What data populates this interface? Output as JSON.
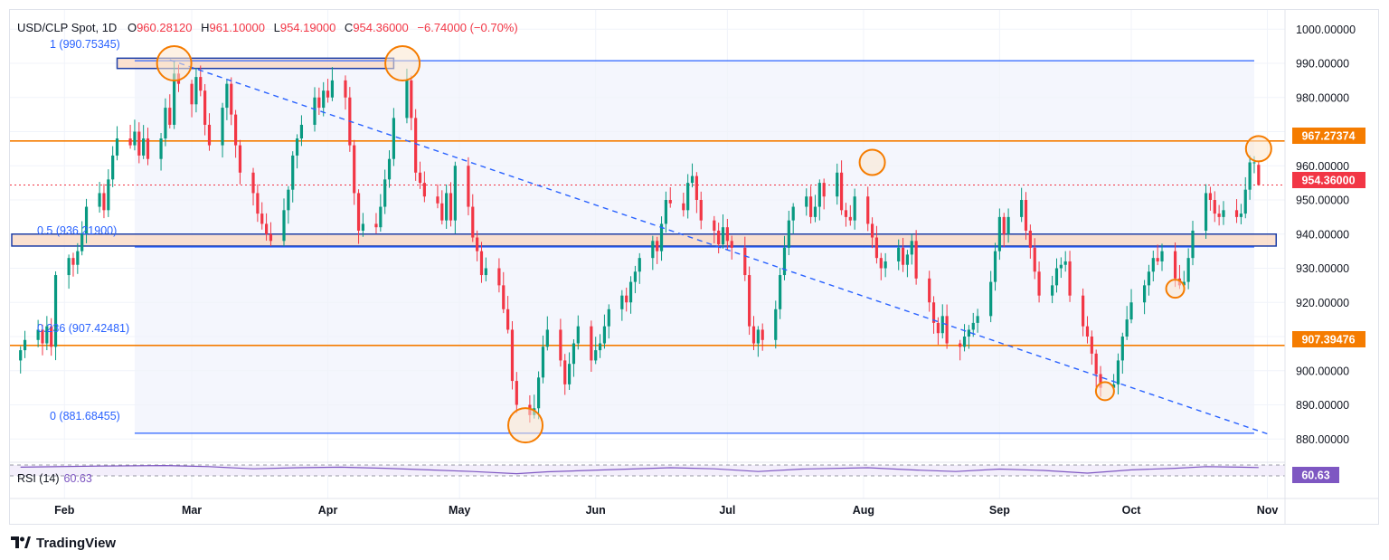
{
  "header": {
    "symbol": "USD/CLP Spot, 1D",
    "open_label": "O",
    "open": "960.28120",
    "high_label": "H",
    "high": "961.10000",
    "low_label": "L",
    "low": "954.19000",
    "close_label": "C",
    "close": "954.36000",
    "change": "−6.74000 (−0.70%)"
  },
  "fib_labels": [
    "1 (990.75345)",
    "0.5 (936.21900)",
    "0.236 (907.42481)",
    "0 (881.68455)"
  ],
  "price_badges": {
    "resistance": "967.27374",
    "last": "954.36000",
    "support": "907.39476",
    "rsi": "60.63"
  },
  "rsi_label": "RSI (14)",
  "rsi_value": "60.63",
  "brand": "TradingView",
  "colors": {
    "up": "#089981",
    "down": "#f23645",
    "fib": "#2962ff",
    "orange": "#f57c00",
    "zone": "#f9d7c0"
  },
  "chart_data": {
    "type": "candlestick",
    "ylim": [
      872,
      1004
    ],
    "y_ticks": [
      880,
      890,
      900,
      910,
      920,
      930,
      940,
      950,
      960,
      970,
      980,
      990,
      1000
    ],
    "y_tick_labels": [
      "880.00000",
      "890.00000",
      "900.00000",
      "910.00000",
      "920.00000",
      "930.00000",
      "940.00000",
      "950.00000",
      "960.00000",
      "970.00000",
      "980.00000",
      "990.00000",
      "1000.00000"
    ],
    "x_ticks": [
      {
        "label": "Feb",
        "day": 12
      },
      {
        "label": "Mar",
        "day": 41
      },
      {
        "label": "Apr",
        "day": 72
      },
      {
        "label": "May",
        "day": 102
      },
      {
        "label": "Jun",
        "day": 133
      },
      {
        "label": "Jul",
        "day": 163
      },
      {
        "label": "Aug",
        "day": 194
      },
      {
        "label": "Sep",
        "day": 225
      },
      {
        "label": "Oct",
        "day": 255
      },
      {
        "label": "Nov",
        "day": 286
      }
    ],
    "closes": [
      [
        2,
        906
      ],
      [
        3,
        909
      ],
      [
        6,
        912
      ],
      [
        7,
        908
      ],
      [
        8,
        913
      ],
      [
        9,
        907
      ],
      [
        10,
        928
      ],
      [
        13,
        933
      ],
      [
        14,
        931
      ],
      [
        15,
        935
      ],
      [
        16,
        940
      ],
      [
        17,
        948
      ],
      [
        20,
        952
      ],
      [
        21,
        947
      ],
      [
        22,
        956
      ],
      [
        23,
        963
      ],
      [
        24,
        968
      ],
      [
        27,
        966
      ],
      [
        28,
        970
      ],
      [
        29,
        963
      ],
      [
        30,
        968
      ],
      [
        31,
        962
      ],
      [
        34,
        968
      ],
      [
        35,
        977
      ],
      [
        36,
        972
      ],
      [
        37,
        987
      ],
      [
        38,
        984
      ],
      [
        41,
        978
      ],
      [
        42,
        986
      ],
      [
        43,
        982
      ],
      [
        44,
        972
      ],
      [
        45,
        966
      ],
      [
        48,
        977
      ],
      [
        49,
        984
      ],
      [
        50,
        975
      ],
      [
        51,
        966
      ],
      [
        52,
        958
      ],
      [
        55,
        952
      ],
      [
        56,
        946
      ],
      [
        57,
        943
      ],
      [
        58,
        940
      ],
      [
        59,
        938
      ],
      [
        62,
        947
      ],
      [
        63,
        953
      ],
      [
        64,
        963
      ],
      [
        65,
        968
      ],
      [
        66,
        972
      ],
      [
        69,
        980
      ],
      [
        70,
        977
      ],
      [
        71,
        982
      ],
      [
        72,
        980
      ],
      [
        73,
        985
      ],
      [
        76,
        980
      ],
      [
        77,
        966
      ],
      [
        78,
        952
      ],
      [
        79,
        941
      ],
      [
        80,
        943
      ],
      [
        83,
        942
      ],
      [
        84,
        948
      ],
      [
        85,
        956
      ],
      [
        86,
        962
      ],
      [
        87,
        974
      ],
      [
        90,
        985
      ],
      [
        91,
        974
      ],
      [
        92,
        958
      ],
      [
        93,
        955
      ],
      [
        94,
        951
      ],
      [
        97,
        949
      ],
      [
        98,
        944
      ],
      [
        99,
        952
      ],
      [
        100,
        944
      ],
      [
        101,
        960
      ],
      [
        104,
        948
      ],
      [
        105,
        939
      ],
      [
        106,
        935
      ],
      [
        107,
        928
      ],
      [
        108,
        930
      ],
      [
        111,
        925
      ],
      [
        112,
        918
      ],
      [
        113,
        912
      ],
      [
        114,
        897
      ],
      [
        115,
        890
      ],
      [
        118,
        887
      ],
      [
        119,
        889
      ],
      [
        120,
        898
      ],
      [
        121,
        907
      ],
      [
        122,
        912
      ],
      [
        125,
        903
      ],
      [
        126,
        896
      ],
      [
        127,
        902
      ],
      [
        128,
        908
      ],
      [
        129,
        913
      ],
      [
        132,
        903
      ],
      [
        133,
        906
      ],
      [
        134,
        908
      ],
      [
        135,
        913
      ],
      [
        136,
        918
      ],
      [
        139,
        922
      ],
      [
        140,
        920
      ],
      [
        141,
        926
      ],
      [
        142,
        929
      ],
      [
        143,
        933
      ],
      [
        146,
        938
      ],
      [
        147,
        935
      ],
      [
        148,
        943
      ],
      [
        149,
        950
      ],
      [
        150,
        949
      ],
      [
        153,
        947
      ],
      [
        154,
        955
      ],
      [
        155,
        957
      ],
      [
        156,
        950
      ],
      [
        157,
        944
      ],
      [
        160,
        941
      ],
      [
        161,
        937
      ],
      [
        162,
        942
      ],
      [
        163,
        938
      ],
      [
        164,
        936
      ],
      [
        167,
        928
      ],
      [
        168,
        913
      ],
      [
        169,
        908
      ],
      [
        170,
        912
      ],
      [
        171,
        909
      ],
      [
        174,
        918
      ],
      [
        175,
        928
      ],
      [
        176,
        936
      ],
      [
        177,
        944
      ],
      [
        178,
        948
      ],
      [
        181,
        951
      ],
      [
        182,
        945
      ],
      [
        183,
        948
      ],
      [
        184,
        955
      ],
      [
        185,
        951
      ],
      [
        188,
        958
      ],
      [
        189,
        947
      ],
      [
        190,
        945
      ],
      [
        191,
        944
      ],
      [
        192,
        951
      ],
      [
        195,
        943
      ],
      [
        196,
        939
      ],
      [
        197,
        933
      ],
      [
        198,
        930
      ],
      [
        199,
        932
      ],
      [
        202,
        936
      ],
      [
        203,
        931
      ],
      [
        204,
        934
      ],
      [
        205,
        938
      ],
      [
        206,
        927
      ],
      [
        209,
        920
      ],
      [
        210,
        914
      ],
      [
        211,
        911
      ],
      [
        212,
        916
      ],
      [
        213,
        908
      ],
      [
        216,
        907
      ],
      [
        217,
        910
      ],
      [
        218,
        912
      ],
      [
        219,
        914
      ],
      [
        220,
        916
      ],
      [
        223,
        926
      ],
      [
        224,
        935
      ],
      [
        225,
        945
      ],
      [
        226,
        940
      ],
      [
        227,
        945
      ],
      [
        230,
        950
      ],
      [
        231,
        941
      ],
      [
        232,
        936
      ],
      [
        233,
        929
      ],
      [
        234,
        922
      ],
      [
        237,
        925
      ],
      [
        238,
        930
      ],
      [
        239,
        931
      ],
      [
        240,
        932
      ],
      [
        241,
        922
      ],
      [
        244,
        913
      ],
      [
        245,
        910
      ],
      [
        246,
        905
      ],
      [
        247,
        899
      ],
      [
        248,
        895
      ],
      [
        251,
        896
      ],
      [
        252,
        903
      ],
      [
        253,
        910
      ],
      [
        254,
        915
      ],
      [
        255,
        920
      ],
      [
        258,
        925
      ],
      [
        259,
        929
      ],
      [
        260,
        933
      ],
      [
        261,
        932
      ],
      [
        262,
        935
      ],
      [
        265,
        927
      ],
      [
        266,
        925
      ],
      [
        267,
        926
      ],
      [
        268,
        933
      ],
      [
        269,
        941
      ],
      [
        272,
        952
      ],
      [
        273,
        950
      ],
      [
        274,
        946
      ],
      [
        275,
        945
      ],
      [
        276,
        947
      ],
      [
        279,
        945
      ],
      [
        280,
        946
      ],
      [
        281,
        953
      ],
      [
        282,
        961
      ],
      [
        283,
        961
      ],
      [
        284,
        954.36
      ]
    ],
    "annotations": [
      {
        "type": "fib_level",
        "ratio": "1",
        "value": 990.75345
      },
      {
        "type": "fib_level",
        "ratio": "0.5",
        "value": 936.219
      },
      {
        "type": "fib_level",
        "ratio": "0.236",
        "value": 907.42481
      },
      {
        "type": "fib_level",
        "ratio": "0",
        "value": 881.68455
      },
      {
        "type": "horizontal",
        "value": 967.27374,
        "color": "orange"
      },
      {
        "type": "horizontal",
        "value": 907.39476,
        "color": "orange"
      },
      {
        "type": "zone",
        "from_day": 24,
        "to_day": 87,
        "low": 988.5,
        "high": 991.5
      },
      {
        "type": "zone",
        "from_day": 0,
        "to_day": 288,
        "low": 936.5,
        "high": 940
      },
      {
        "type": "trendline",
        "points": [
          [
            36,
            991
          ],
          [
            286,
            881.5
          ]
        ],
        "style": "dashed"
      },
      {
        "type": "circle",
        "day": 37,
        "value": 990,
        "size": "large"
      },
      {
        "type": "circle",
        "day": 89,
        "value": 990,
        "size": "large"
      },
      {
        "type": "circle",
        "day": 117,
        "value": 884,
        "size": "large"
      },
      {
        "type": "circle",
        "day": 196,
        "value": 961,
        "size": "medium"
      },
      {
        "type": "circle",
        "day": 249,
        "value": 894,
        "size": "small"
      },
      {
        "type": "circle",
        "day": 265,
        "value": 924,
        "size": "small"
      },
      {
        "type": "circle",
        "day": 284,
        "value": 965,
        "size": "medium"
      }
    ],
    "rsi": {
      "name": "RSI (14)",
      "last": 60.63,
      "upper": 70,
      "lower": 30,
      "values": [
        [
          2,
          62
        ],
        [
          20,
          66
        ],
        [
          35,
          68
        ],
        [
          45,
          64
        ],
        [
          55,
          56
        ],
        [
          65,
          60
        ],
        [
          75,
          62
        ],
        [
          85,
          58
        ],
        [
          95,
          52
        ],
        [
          105,
          46
        ],
        [
          115,
          38
        ],
        [
          122,
          45
        ],
        [
          135,
          52
        ],
        [
          150,
          60
        ],
        [
          160,
          56
        ],
        [
          170,
          46
        ],
        [
          180,
          55
        ],
        [
          195,
          60
        ],
        [
          205,
          52
        ],
        [
          215,
          46
        ],
        [
          225,
          55
        ],
        [
          235,
          50
        ],
        [
          245,
          40
        ],
        [
          255,
          52
        ],
        [
          265,
          58
        ],
        [
          272,
          64
        ],
        [
          280,
          62
        ],
        [
          284,
          60.63
        ]
      ]
    }
  }
}
